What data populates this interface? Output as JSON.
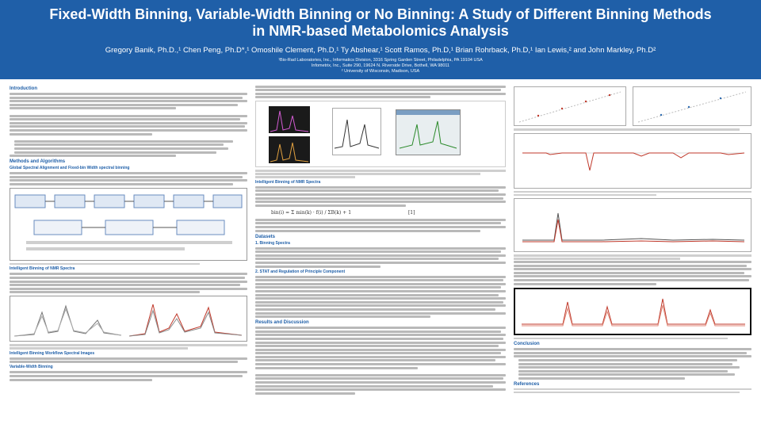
{
  "header": {
    "title_line1": "Fixed-Width Binning, Variable-Width Binning or No Binning: A Study of Different Binning Methods",
    "title_line2": "in NMR-based Metabolomics Analysis",
    "authors": "Gregory Banik, Ph.D.,¹ Chen Peng, Ph.D*,¹ Omoshile Clement, Ph.D,¹ Ty Abshear,¹ Scott Ramos, Ph.D,¹ Brian Rohrback, Ph.D,¹ Ian Lewis,² and John Markley, Ph.D²",
    "affil_line1": "¹Bio-Rad Laboratories, Inc., Informatics Division, 3316 Spring Garden Street, Philadelphia, PA 19104 USA",
    "affil_line2": "Infometrix, Inc., Suite 290, 19624 N. Riverside Drive, Bothell, WA 98011",
    "affil_line3": "² University of Wisconsin, Madison, USA"
  },
  "sections": {
    "introduction": "Introduction",
    "methods": "Methods and Algorithms",
    "methods_sub1": "Global Spectral Alignment and Fixed-bin Width spectral binning",
    "methods_sub2": "Intelligent Binning of NMR Spectra",
    "methods_sub3": "Variable-Width Binning",
    "methods_sub4": "Intelligent Binning Workflow Spectral Images",
    "datasets": "Datasets",
    "datasets_sub1": "1. Binning Spectra",
    "datasets_sub2": "2. STAT and Regulation of Principle Component",
    "results": "Results and Discussion",
    "conclusion": "Conclusion",
    "references": "References"
  },
  "formula": "bin(i) = Σ min(k) · f(i) / ΣB(k) + 1",
  "formula_number": "[1]"
}
